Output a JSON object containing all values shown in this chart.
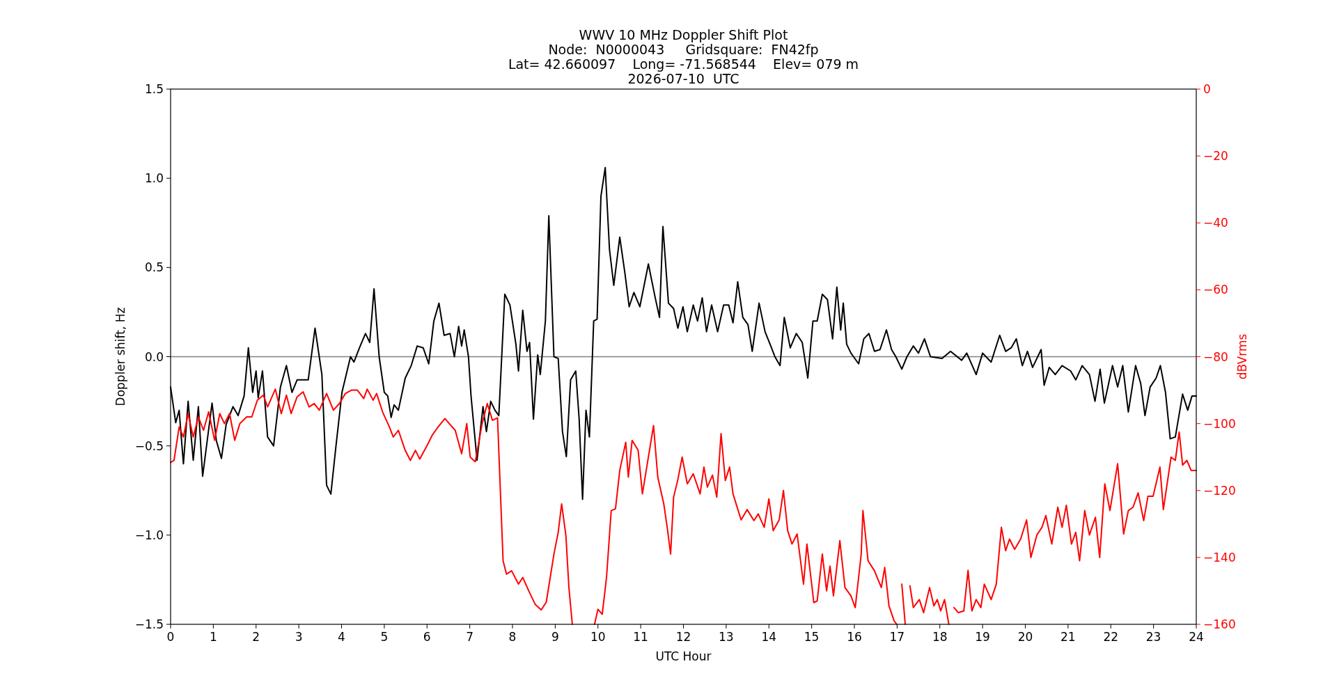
{
  "chart_data": {
    "type": "line",
    "title": "WWV 10 MHz Doppler Shift Plot",
    "subtitle": "Node:  N0000043     Gridsquare:  FN42fp\nLat= 42.660097    Long= -71.568544    Elev= 079 m\n2026-07-10  UTC",
    "xlabel": "UTC Hour",
    "ylabel": "Doppler shift, Hz",
    "y2label": "dBVrms",
    "xlim": [
      0,
      24
    ],
    "xticks": [
      0,
      1,
      2,
      3,
      4,
      5,
      6,
      7,
      8,
      9,
      10,
      11,
      12,
      13,
      14,
      15,
      16,
      17,
      18,
      19,
      20,
      21,
      22,
      23,
      24
    ],
    "ylim": [
      -1.5,
      1.5
    ],
    "yticks": [
      {
        "value": -1.5,
        "label": "−1.5"
      },
      {
        "value": -1,
        "label": "−1.0"
      },
      {
        "value": -0.5,
        "label": "−0.5"
      },
      {
        "value": 0,
        "label": "0.0"
      },
      {
        "value": 0.5,
        "label": "0.5"
      },
      {
        "value": 1,
        "label": "1.0"
      },
      {
        "value": 1.5,
        "label": "1.5"
      }
    ],
    "y2lim": [
      -160,
      0
    ],
    "y2ticks": [
      {
        "value": -160,
        "label": "−160"
      },
      {
        "value": -140,
        "label": "−140"
      },
      {
        "value": -120,
        "label": "−120"
      },
      {
        "value": -100,
        "label": "−100"
      },
      {
        "value": -80,
        "label": "−80"
      },
      {
        "value": -60,
        "label": "−60"
      },
      {
        "value": -40,
        "label": "−40"
      },
      {
        "value": -20,
        "label": "−20"
      },
      {
        "value": 0,
        "label": "0"
      }
    ],
    "ref_lines": [
      {
        "axis": "y",
        "value": 0,
        "color": "#808080"
      }
    ],
    "series": [
      {
        "color": "#000000",
        "x": [
          0,
          0.12,
          0.2,
          0.3,
          0.41,
          0.53,
          0.65,
          0.75,
          0.97,
          1.07,
          1.19,
          1.3,
          1.46,
          1.58,
          1.72,
          1.82,
          1.92,
          2,
          2.05,
          2.15,
          2.27,
          2.41,
          2.57,
          2.71,
          2.84,
          2.96,
          3.22,
          3.38,
          3.54,
          3.65,
          3.75,
          3.87,
          4.01,
          4.13,
          4.21,
          4.29,
          4.42,
          4.56,
          4.66,
          4.76,
          4.88,
          5,
          5.08,
          5.16,
          5.23,
          5.33,
          5.49,
          5.63,
          5.77,
          5.91,
          6.04,
          6.16,
          6.28,
          6.4,
          6.54,
          6.64,
          6.74,
          6.81,
          6.87,
          6.97,
          7.03,
          7.17,
          7.31,
          7.39,
          7.49,
          7.59,
          7.68,
          7.82,
          7.94,
          8.08,
          8.14,
          8.24,
          8.34,
          8.4,
          8.49,
          8.59,
          8.65,
          8.77,
          8.85,
          8.97,
          9.07,
          9.17,
          9.26,
          9.36,
          9.48,
          9.56,
          9.64,
          9.72,
          9.8,
          9.9,
          9.98,
          10.07,
          10.17,
          10.27,
          10.37,
          10.51,
          10.63,
          10.73,
          10.84,
          10.98,
          11.18,
          11.34,
          11.44,
          11.52,
          11.65,
          11.77,
          11.87,
          11.99,
          12.09,
          12.23,
          12.33,
          12.44,
          12.54,
          12.66,
          12.8,
          12.94,
          13.06,
          13.16,
          13.27,
          13.39,
          13.51,
          13.61,
          13.77,
          13.91,
          14.06,
          14.14,
          14.26,
          14.36,
          14.5,
          14.64,
          14.78,
          14.91,
          15.03,
          15.13,
          15.25,
          15.37,
          15.49,
          15.59,
          15.68,
          15.74,
          15.82,
          15.92,
          16.1,
          16.22,
          16.34,
          16.47,
          16.6,
          16.75,
          16.87,
          16.97,
          17.11,
          17.23,
          17.38,
          17.5,
          17.64,
          17.78,
          18.05,
          18.25,
          18.51,
          18.63,
          18.85,
          19,
          19.2,
          19.4,
          19.54,
          19.67,
          19.79,
          19.93,
          20.05,
          20.17,
          20.37,
          20.44,
          20.56,
          20.7,
          20.86,
          21.06,
          21.18,
          21.33,
          21.5,
          21.63,
          21.75,
          21.85,
          22.04,
          22.16,
          22.28,
          22.41,
          22.58,
          22.7,
          22.8,
          22.92,
          23.06,
          23.16,
          23.28,
          23.39,
          23.51,
          23.68,
          23.8,
          23.9,
          24
        ],
        "values": [
          -0.17,
          -0.37,
          -0.3,
          -0.6,
          -0.25,
          -0.58,
          -0.28,
          -0.67,
          -0.26,
          -0.47,
          -0.57,
          -0.38,
          -0.28,
          -0.33,
          -0.22,
          0.05,
          -0.2,
          -0.08,
          -0.23,
          -0.08,
          -0.45,
          -0.5,
          -0.17,
          -0.05,
          -0.2,
          -0.13,
          -0.13,
          0.16,
          -0.1,
          -0.72,
          -0.77,
          -0.5,
          -0.2,
          -0.08,
          0,
          -0.03,
          0.05,
          0.13,
          0.08,
          0.38,
          0,
          -0.2,
          -0.22,
          -0.34,
          -0.27,
          -0.3,
          -0.12,
          -0.05,
          0.06,
          0.05,
          -0.04,
          0.2,
          0.3,
          0.12,
          0.13,
          0,
          0.17,
          0.06,
          0.15,
          0,
          -0.22,
          -0.58,
          -0.28,
          -0.42,
          -0.25,
          -0.3,
          -0.33,
          0.35,
          0.29,
          0.07,
          -0.08,
          0.26,
          0.03,
          0.08,
          -0.35,
          0.01,
          -0.1,
          0.2,
          0.79,
          0,
          -0.01,
          -0.42,
          -0.56,
          -0.13,
          -0.08,
          -0.35,
          -0.8,
          -0.3,
          -0.45,
          0.2,
          0.21,
          0.9,
          1.06,
          0.6,
          0.4,
          0.67,
          0.47,
          0.28,
          0.36,
          0.28,
          0.52,
          0.33,
          0.22,
          0.73,
          0.3,
          0.27,
          0.16,
          0.28,
          0.14,
          0.29,
          0.2,
          0.33,
          0.14,
          0.29,
          0.14,
          0.29,
          0.29,
          0.19,
          0.42,
          0.22,
          0.18,
          0.03,
          0.3,
          0.14,
          0.05,
          0,
          -0.05,
          0.22,
          0.05,
          0.13,
          0.08,
          -0.12,
          0.2,
          0.2,
          0.35,
          0.32,
          0.1,
          0.39,
          0.15,
          0.3,
          0.07,
          0.02,
          -0.04,
          0.1,
          0.13,
          0.03,
          0.04,
          0.15,
          0.04,
          0,
          -0.07,
          0,
          0.06,
          0.02,
          0.1,
          0,
          -0.01,
          0.03,
          -0.02,
          0.02,
          -0.1,
          0.02,
          -0.03,
          0.12,
          0.03,
          0.05,
          0.1,
          -0.05,
          0.03,
          -0.06,
          0.04,
          -0.16,
          -0.06,
          -0.1,
          -0.05,
          -0.08,
          -0.13,
          -0.05,
          -0.1,
          -0.25,
          -0.07,
          -0.26,
          -0.05,
          -0.17,
          -0.05,
          -0.31,
          -0.05,
          -0.15,
          -0.33,
          -0.17,
          -0.12,
          -0.05,
          -0.2,
          -0.46,
          -0.45,
          -0.21,
          -0.3,
          -0.22,
          -0.22
        ]
      },
      {
        "color": "#ff0000",
        "axis": "y2",
        "x": [
          0,
          0.08,
          0.2,
          0.3,
          0.41,
          0.53,
          0.65,
          0.77,
          0.89,
          1.03,
          1.15,
          1.26,
          1.38,
          1.5,
          1.62,
          1.78,
          1.9,
          2.03,
          2.17,
          2.27,
          2.45,
          2.59,
          2.71,
          2.82,
          2.96,
          3.1,
          3.24,
          3.36,
          3.48,
          3.65,
          3.81,
          3.95,
          4.09,
          4.23,
          4.37,
          4.52,
          4.6,
          4.74,
          4.82,
          4.96,
          5.12,
          5.21,
          5.33,
          5.49,
          5.61,
          5.73,
          5.83,
          6,
          6.12,
          6.26,
          6.42,
          6.52,
          6.66,
          6.81,
          6.93,
          7.01,
          7.13,
          7.29,
          7.41,
          7.53,
          7.65,
          7.78,
          7.86,
          7.98,
          8.14,
          8.24,
          8.38,
          8.53,
          8.67,
          8.79,
          8.97,
          9.07,
          9.15,
          9.25,
          9.32,
          9.4,
          9.6,
          9.92,
          10,
          10.1,
          10.2,
          10.31,
          10.41,
          10.51,
          10.65,
          10.71,
          10.8,
          10.94,
          11.04,
          11.18,
          11.3,
          11.4,
          11.54,
          11.62,
          11.7,
          11.77,
          11.87,
          11.97,
          12.09,
          12.23,
          12.39,
          12.48,
          12.56,
          12.68,
          12.78,
          12.88,
          12.98,
          13.08,
          13.16,
          13.25,
          13.35,
          13.49,
          13.65,
          13.75,
          13.89,
          14,
          14.1,
          14.24,
          14.34,
          14.44,
          14.54,
          14.66,
          14.81,
          14.89,
          15.01,
          15.05,
          15.13,
          15.25,
          15.35,
          15.43,
          15.51,
          15.66,
          15.78,
          15.92,
          16.02,
          16.16,
          16.2,
          16.32,
          16.47,
          16.63,
          16.71,
          16.81,
          16.93,
          16.99,
          17.03,
          17.11,
          17.19,
          17.23,
          17.3,
          17.38,
          17.52,
          17.62,
          17.76,
          17.86,
          17.94,
          18.02,
          18.11,
          18.21,
          18.25,
          18.33,
          18.43,
          18.56,
          18.66,
          18.75,
          18.85,
          18.96,
          19.04,
          19.2,
          19.32,
          19.44,
          19.54,
          19.63,
          19.75,
          19.89,
          20.03,
          20.13,
          20.27,
          20.39,
          20.48,
          20.62,
          20.76,
          20.86,
          20.96,
          21.08,
          21.18,
          21.27,
          21.39,
          21.5,
          21.64,
          21.74,
          21.86,
          21.98,
          22.16,
          22.3,
          22.41,
          22.52,
          22.64,
          22.77,
          22.87,
          22.99,
          23.15,
          23.23,
          23.41,
          23.51,
          23.6,
          23.68,
          23.78,
          23.88,
          24
        ],
        "values": [
          -111.6,
          -111,
          -101,
          -104,
          -97,
          -104,
          -98,
          -102,
          -96.5,
          -105,
          -97,
          -100,
          -97,
          -105,
          -100,
          -98,
          -98,
          -93,
          -91.5,
          -95,
          -89.7,
          -97,
          -91.5,
          -97,
          -92,
          -90.5,
          -95,
          -94,
          -96,
          -91,
          -96,
          -94,
          -91,
          -90,
          -90,
          -92.5,
          -89.7,
          -93,
          -91,
          -96.5,
          -101,
          -104,
          -102,
          -108,
          -111,
          -108,
          -110.6,
          -106.6,
          -103.5,
          -101,
          -98.5,
          -100,
          -102,
          -109,
          -100,
          -110,
          -111.4,
          -100,
          -94,
          -99,
          -98.3,
          -141,
          -145,
          -144,
          -148,
          -146,
          -150,
          -154,
          -155.7,
          -153.4,
          -139,
          -132.5,
          -124,
          -133.5,
          -149,
          -160,
          null,
          -160,
          -155.5,
          -157,
          -146,
          -126,
          -125.5,
          -114,
          -105.6,
          -116,
          -105,
          -108,
          -121,
          -110,
          -100.6,
          -116,
          -124,
          -131,
          -139,
          -122,
          -116.7,
          -110,
          -118,
          -115,
          -121,
          -113,
          -119,
          -115.4,
          -122,
          -103,
          -117,
          -113,
          -121,
          -124.7,
          -128.8,
          -125.7,
          -129,
          -127,
          -131,
          -122.5,
          -132,
          -128.8,
          -120,
          -132,
          -136,
          -133,
          -148,
          -136,
          -149,
          -153.5,
          -153,
          -139,
          -150,
          -142.6,
          -151.5,
          -135,
          -149,
          -151.5,
          -155,
          -139,
          -126,
          -141,
          -144,
          -149,
          -143,
          -154.5,
          -159,
          -160,
          null,
          -148,
          -160,
          null,
          -148.5,
          -155,
          -152.6,
          -156.5,
          -149,
          -154.5,
          -152.6,
          -156,
          -152.6,
          -160,
          null,
          -155,
          -156.5,
          -156,
          -143.9,
          -156,
          -152.6,
          -155,
          -148,
          -152.6,
          -148,
          -131,
          -138,
          -134.5,
          -137.6,
          -134.5,
          -128.8,
          -140,
          -133.3,
          -131,
          -127.5,
          -136,
          -125,
          -131,
          -124.4,
          -136,
          -132.5,
          -141,
          -126,
          -133.3,
          -128,
          -140,
          -118,
          -126,
          -112,
          -133,
          -126,
          -125,
          -120.7,
          -129,
          -121.7,
          -121.7,
          -113,
          -125.7,
          -110,
          -111,
          -102.5,
          -112.4,
          -111,
          -114,
          -114
        ]
      }
    ]
  }
}
